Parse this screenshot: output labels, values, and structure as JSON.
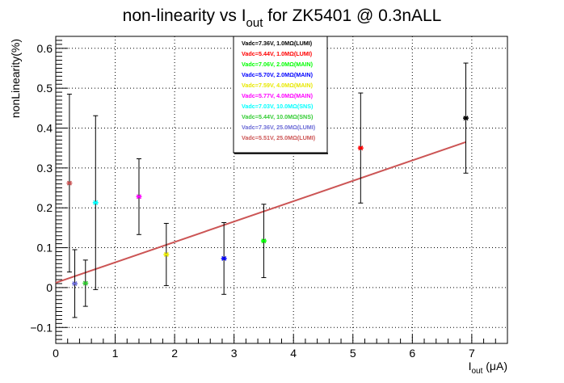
{
  "chart_data": {
    "type": "scatter",
    "title": "non-linearity vs I",
    "title_sub": "out",
    "title_rest": " for ZK5401 @ 0.3nALL",
    "xlabel": "I",
    "xlabel_sub": "out",
    "xlabel_rest": " (μA)",
    "ylabel": "nonLinearity(%)",
    "xlim": [
      0,
      7.6
    ],
    "ylim": [
      -0.14,
      0.63
    ],
    "xticks": [
      "0",
      "1",
      "2",
      "3",
      "4",
      "5",
      "6",
      "7"
    ],
    "yticks": [
      "−0.1",
      "0",
      "0.1",
      "0.2",
      "0.3",
      "0.4",
      "0.5",
      "0.6"
    ],
    "grid": true,
    "legend_position": "top-center",
    "fit_line": {
      "color": "#cc5555",
      "x": [
        0,
        6.9
      ],
      "y": [
        0.012,
        0.365
      ]
    },
    "series": [
      {
        "name": "Vadc=7.36V, 1.0MΩ(LUMI)",
        "color": "#000000",
        "x": 6.9,
        "y": 0.425,
        "err": 0.138
      },
      {
        "name": "Vadc=5.44V, 1.0MΩ(LUMI)",
        "color": "#ff0000",
        "x": 5.13,
        "y": 0.35,
        "err": 0.138
      },
      {
        "name": "Vadc=7.06V, 2.0MΩ(MAIN)",
        "color": "#00ff00",
        "x": 3.5,
        "y": 0.117,
        "err": 0.092
      },
      {
        "name": "Vadc=5.70V, 2.0MΩ(MAIN)",
        "color": "#0000ff",
        "x": 2.83,
        "y": 0.073,
        "err": 0.09
      },
      {
        "name": "Vadc=7.59V, 4.0MΩ(MAIN)",
        "color": "#e8e800",
        "x": 1.86,
        "y": 0.083,
        "err": 0.078
      },
      {
        "name": "Vadc=5.77V, 4.0MΩ(MAIN)",
        "color": "#ff00ff",
        "x": 1.4,
        "y": 0.228,
        "err": 0.095
      },
      {
        "name": "Vadc=7.03V, 10.0MΩ(SNS)",
        "color": "#00ffff",
        "x": 0.67,
        "y": 0.213,
        "err": 0.218
      },
      {
        "name": "Vadc=5.44V, 10.0MΩ(SNS)",
        "color": "#33cc33",
        "x": 0.5,
        "y": 0.011,
        "err": 0.058
      },
      {
        "name": "Vadc=7.36V, 25.0MΩ(LUMI)",
        "color": "#6b6bd6",
        "x": 0.32,
        "y": 0.01,
        "err": 0.085
      },
      {
        "name": "Vadc=5.51V, 25.0MΩ(LUMI)",
        "color": "#cc5555",
        "x": 0.23,
        "y": 0.262,
        "err": 0.223
      }
    ]
  }
}
